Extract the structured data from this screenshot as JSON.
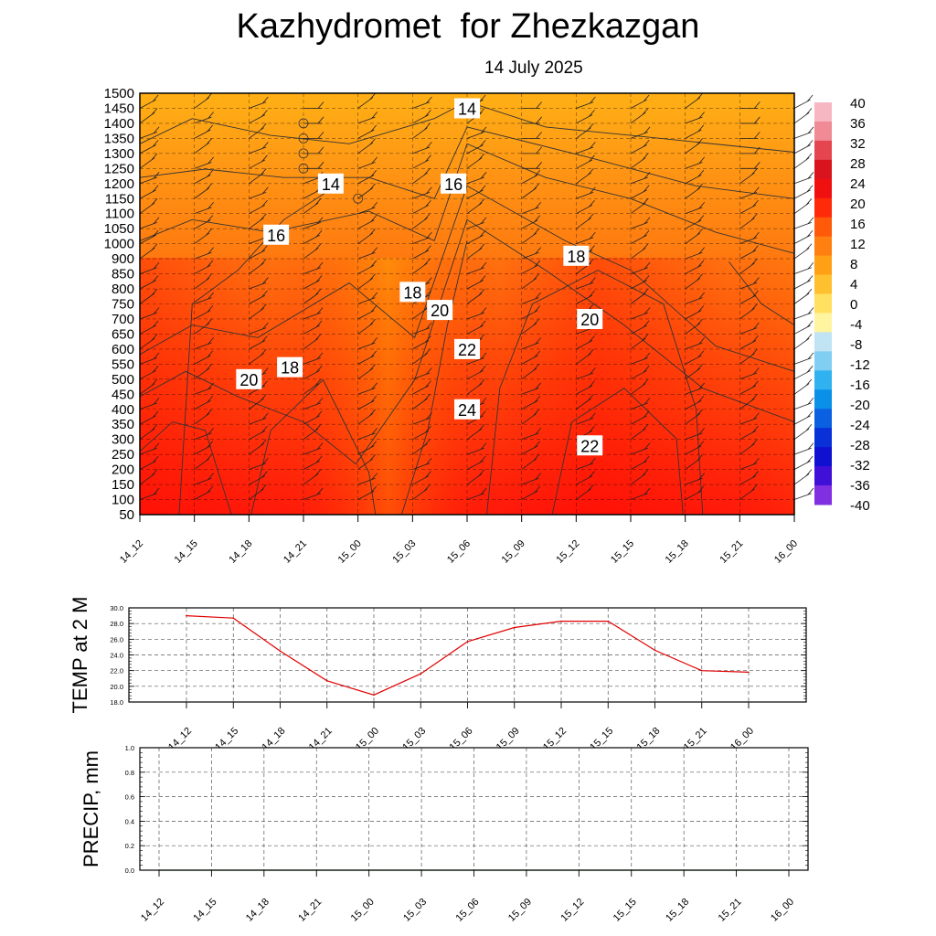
{
  "title": "Kazhydromet  for Zhezkazgan",
  "subtitle": "14 July 2025",
  "colors": {
    "panel_border": "#000000",
    "contour": "#333333",
    "temp_line": "#e00000",
    "precip_line": "#2e7d32",
    "grid": "#555555"
  },
  "chart_data": [
    {
      "type": "heatmap",
      "name": "cross-section",
      "x_ticks": [
        "14_12",
        "14_15",
        "14_18",
        "14_21",
        "15_00",
        "15_03",
        "15_06",
        "15_09",
        "15_12",
        "15_15",
        "15_18",
        "15_21",
        "16_00"
      ],
      "y_ticks": [
        1500,
        1450,
        1400,
        1350,
        1300,
        1250,
        1200,
        1150,
        1100,
        1050,
        1000,
        900,
        850,
        800,
        750,
        700,
        650,
        600,
        550,
        500,
        450,
        400,
        350,
        300,
        250,
        200,
        150,
        100,
        50
      ],
      "colorbar": {
        "labels": [
          "40",
          "36",
          "32",
          "28",
          "24",
          "20",
          "16",
          "12",
          "8",
          "4",
          "0",
          "-4",
          "-8",
          "-12",
          "-16",
          "-20",
          "-24",
          "-28",
          "-32",
          "-36",
          "-40"
        ],
        "colors": [
          "#f7b7c2",
          "#f08a95",
          "#e4454f",
          "#d9141e",
          "#f01010",
          "#ff2a0a",
          "#ff5a0a",
          "#ff8010",
          "#ffa015",
          "#ffc030",
          "#ffe060",
          "#fff4a0",
          "#c0e4f4",
          "#80cff2",
          "#30b2f0",
          "#0a90e8",
          "#0a60e0",
          "#0a30d8",
          "#1010d0",
          "#4010d8",
          "#8030e0"
        ]
      },
      "contour_labels": [
        {
          "text": "14",
          "x": "15_12",
          "y": 1450
        },
        {
          "text": "14",
          "x": "15_02",
          "y": 1200
        },
        {
          "text": "16",
          "x": "15_11",
          "y": 1200
        },
        {
          "text": "16",
          "x": "14_22",
          "y": 1030
        },
        {
          "text": "18",
          "x": "15_20",
          "y": 920
        },
        {
          "text": "18",
          "x": "15_08",
          "y": 790
        },
        {
          "text": "20",
          "x": "15_10",
          "y": 730
        },
        {
          "text": "20",
          "x": "15_21",
          "y": 700
        },
        {
          "text": "22",
          "x": "15_12",
          "y": 600
        },
        {
          "text": "18",
          "x": "14_23",
          "y": 540
        },
        {
          "text": "20",
          "x": "14_20",
          "y": 500
        },
        {
          "text": "24",
          "x": "15_12",
          "y": 400
        },
        {
          "text": "22",
          "x": "15_21",
          "y": 280
        }
      ]
    },
    {
      "type": "line",
      "name": "temperature",
      "ylabel": "TEMP at 2 M",
      "x": [
        "14_12",
        "14_15",
        "14_18",
        "14_21",
        "15_00",
        "15_03",
        "15_06",
        "15_09",
        "15_12",
        "15_15",
        "15_18",
        "15_21",
        "16_00"
      ],
      "values": [
        29.0,
        28.7,
        24.5,
        20.7,
        18.9,
        21.6,
        25.7,
        27.5,
        28.3,
        28.3,
        24.6,
        22.0,
        21.8
      ],
      "ylim": [
        18.0,
        30.0
      ],
      "y_ticks": [
        "30.0",
        "28.0",
        "26.0",
        "24.0",
        "22.0",
        "20.0",
        "18.0"
      ]
    },
    {
      "type": "line",
      "name": "precipitation",
      "ylabel": "PRECIP, mm",
      "x": [
        "14_12",
        "14_15",
        "14_18",
        "14_21",
        "15_00",
        "15_03",
        "15_06",
        "15_09",
        "15_12",
        "15_15",
        "15_18",
        "15_21",
        "16_00"
      ],
      "values": [
        0,
        0,
        0,
        0,
        0,
        0,
        0,
        0,
        0,
        0,
        0,
        0,
        0
      ],
      "ylim": [
        0.0,
        1.0
      ],
      "y_ticks": [
        "1.0",
        "0.8",
        "0.6",
        "0.4",
        "0.2",
        "0.0"
      ]
    }
  ]
}
